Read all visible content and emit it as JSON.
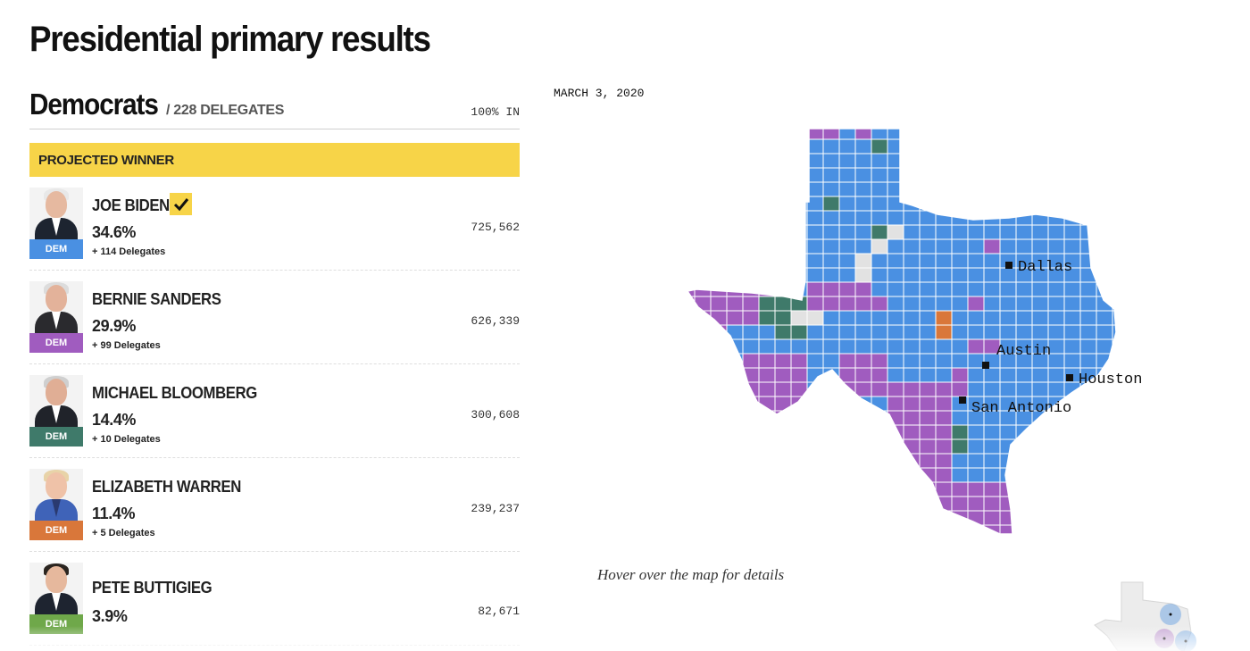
{
  "page": {
    "title": "Presidential primary results"
  },
  "party": {
    "name": "Democrats",
    "delegates": "/ 228 DELEGATES",
    "reporting": "100% IN"
  },
  "winner_banner": "PROJECTED WINNER",
  "candidates": [
    {
      "name": "JOE BIDEN",
      "pct": "34.6%",
      "delegates": "+ 114 Delegates",
      "votes": "725,562",
      "party": "DEM",
      "color": "#4a90e2",
      "winner": true
    },
    {
      "name": "BERNIE SANDERS",
      "pct": "29.9%",
      "delegates": "+ 99 Delegates",
      "votes": "626,339",
      "party": "DEM",
      "color": "#a05cbf"
    },
    {
      "name": "MICHAEL BLOOMBERG",
      "pct": "14.4%",
      "delegates": "+ 10 Delegates",
      "votes": "300,608",
      "party": "DEM",
      "color": "#3f7a6a"
    },
    {
      "name": "ELIZABETH WARREN",
      "pct": "11.4%",
      "delegates": "+ 5 Delegates",
      "votes": "239,237",
      "party": "DEM",
      "color": "#d9773a"
    },
    {
      "name": "PETE BUTTIGIEG",
      "pct": "3.9%",
      "votes": "82,671",
      "party": "DEM",
      "color": "#6fa84a"
    }
  ],
  "map": {
    "date": "MARCH 3, 2020",
    "hover_note": "Hover over the map for details",
    "cities": [
      "Dallas",
      "Austin",
      "Houston",
      "San Antonio"
    ],
    "colors": {
      "biden": "#4a90e2",
      "sanders": "#a05cbf",
      "bloomberg": "#3f7a6a",
      "warren": "#d9773a",
      "tie": "#e2e2e2"
    }
  }
}
